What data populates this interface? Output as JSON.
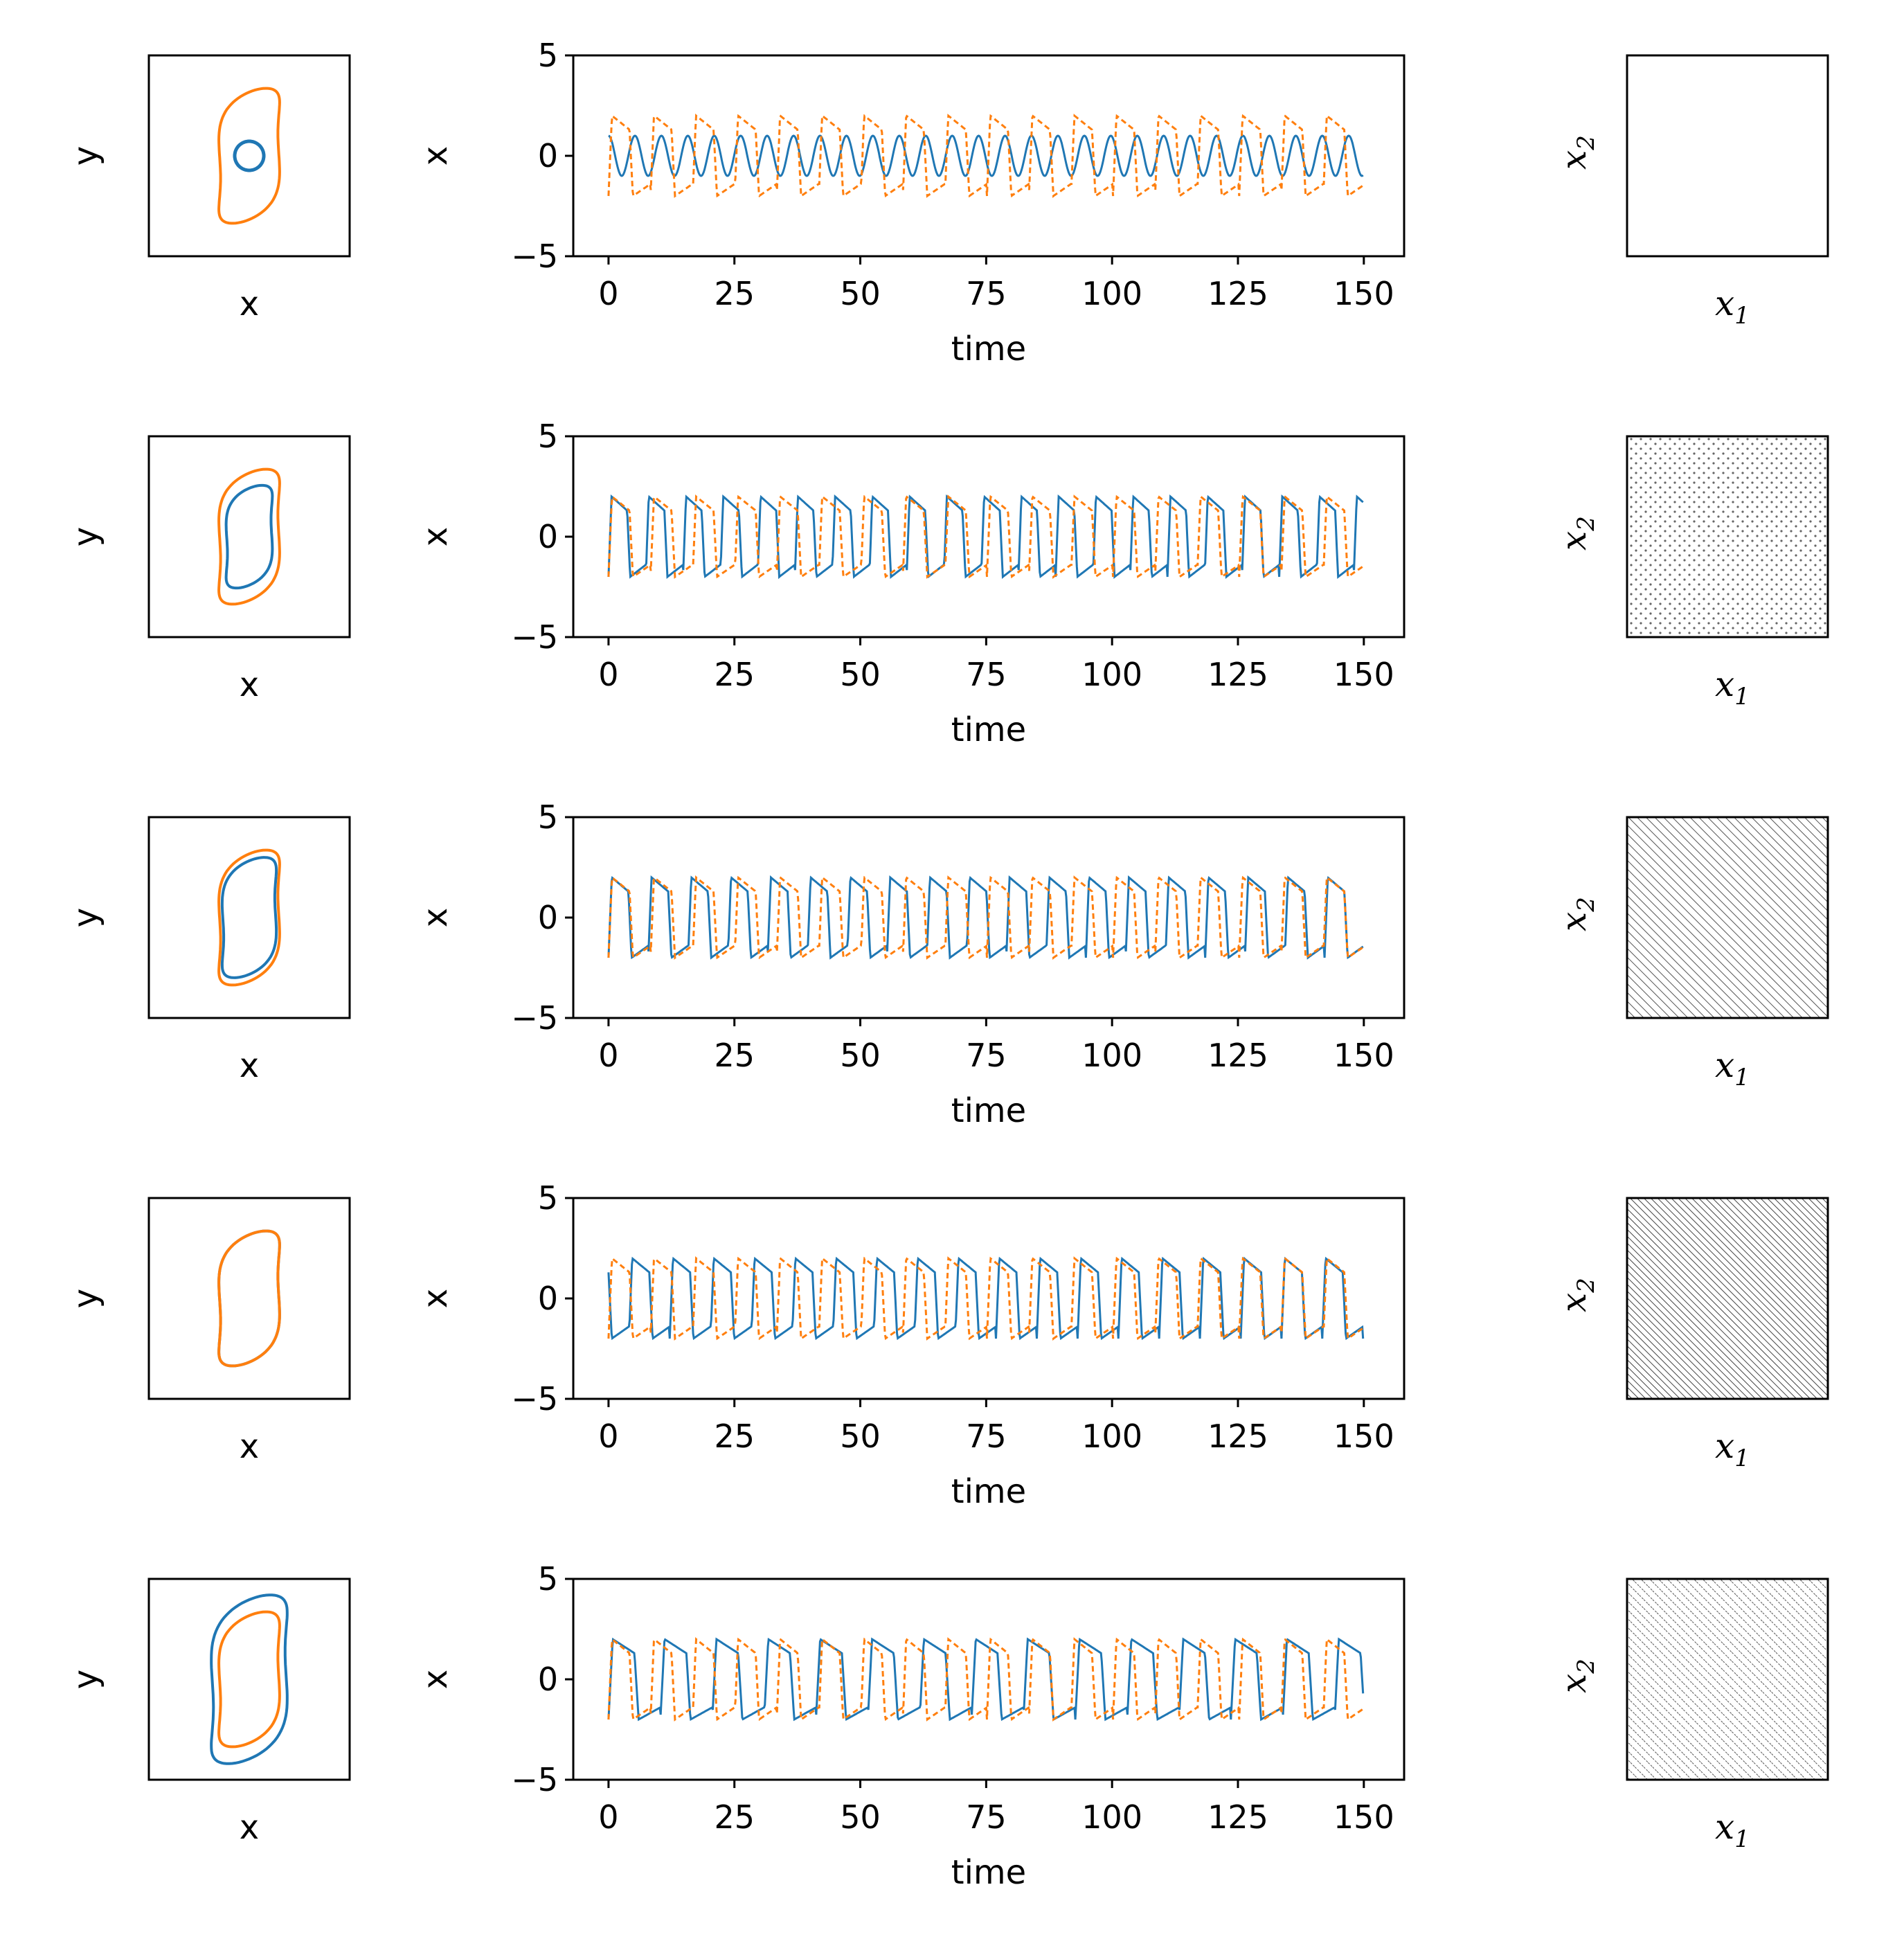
{
  "colors": {
    "series_blue": "#1f77b4",
    "series_orange": "#ff7f0e",
    "axes": "#000000",
    "hatch": "#555555"
  },
  "rows": [
    {
      "phase": {
        "xlabel": "x",
        "ylabel": "y"
      },
      "timeseries": {
        "xlabel": "time",
        "ylabel": "x",
        "yticks": [
          "5",
          "0",
          "−5"
        ],
        "xticks": [
          "0",
          "25",
          "50",
          "75",
          "100",
          "125",
          "150"
        ]
      },
      "param": {
        "xlabel_base": "x",
        "xlabel_sub": "1",
        "ylabel_base": "x",
        "ylabel_sub": "2",
        "pattern": "empty"
      }
    },
    {
      "phase": {
        "xlabel": "x",
        "ylabel": "y"
      },
      "timeseries": {
        "xlabel": "time",
        "ylabel": "x",
        "yticks": [
          "5",
          "0",
          "−5"
        ],
        "xticks": [
          "0",
          "25",
          "50",
          "75",
          "100",
          "125",
          "150"
        ]
      },
      "param": {
        "xlabel_base": "x",
        "xlabel_sub": "1",
        "ylabel_base": "x",
        "ylabel_sub": "2",
        "pattern": "dots"
      }
    },
    {
      "phase": {
        "xlabel": "x",
        "ylabel": "y"
      },
      "timeseries": {
        "xlabel": "time",
        "ylabel": "x",
        "yticks": [
          "5",
          "0",
          "−5"
        ],
        "xticks": [
          "0",
          "25",
          "50",
          "75",
          "100",
          "125",
          "150"
        ]
      },
      "param": {
        "xlabel_base": "x",
        "xlabel_sub": "1",
        "ylabel_base": "x",
        "ylabel_sub": "2",
        "pattern": "hatch-sparse"
      }
    },
    {
      "phase": {
        "xlabel": "x",
        "ylabel": "y"
      },
      "timeseries": {
        "xlabel": "time",
        "ylabel": "x",
        "yticks": [
          "5",
          "0",
          "−5"
        ],
        "xticks": [
          "0",
          "25",
          "50",
          "75",
          "100",
          "125",
          "150"
        ]
      },
      "param": {
        "xlabel_base": "x",
        "xlabel_sub": "1",
        "ylabel_base": "x",
        "ylabel_sub": "2",
        "pattern": "hatch-dense"
      }
    },
    {
      "phase": {
        "xlabel": "x",
        "ylabel": "y"
      },
      "timeseries": {
        "xlabel": "time",
        "ylabel": "x",
        "yticks": [
          "5",
          "0",
          "−5"
        ],
        "xticks": [
          "0",
          "25",
          "50",
          "75",
          "100",
          "125",
          "150"
        ]
      },
      "param": {
        "xlabel_base": "x",
        "xlabel_sub": "1",
        "ylabel_base": "x",
        "ylabel_sub": "2",
        "pattern": "hatch-dashed"
      }
    }
  ],
  "chart_data": [
    {
      "type": "line",
      "panel": "row1-timeseries",
      "xlim": [
        -7,
        158
      ],
      "ylim": [
        -5,
        5
      ],
      "grid": false,
      "series": [
        {
          "style": "solid",
          "color": "#1f77b4",
          "amplitude": 1.0,
          "period": 5.25,
          "phase": 0.0,
          "shape": "sine"
        },
        {
          "style": "dashed",
          "color": "#ff7f0e",
          "amplitude": 2.0,
          "period": 8.35,
          "phase": 0.0,
          "shape": "relaxation"
        }
      ]
    },
    {
      "type": "line",
      "panel": "row2-timeseries",
      "xlim": [
        -7,
        158
      ],
      "ylim": [
        -5,
        5
      ],
      "grid": false,
      "series": [
        {
          "style": "solid",
          "color": "#1f77b4",
          "amplitude": 2.0,
          "period": 7.4,
          "phase": 0.0,
          "shape": "relaxation"
        },
        {
          "style": "dashed",
          "color": "#ff7f0e",
          "amplitude": 2.0,
          "period": 8.35,
          "phase": 0.0,
          "shape": "relaxation"
        }
      ]
    },
    {
      "type": "line",
      "panel": "row3-timeseries",
      "xlim": [
        -7,
        158
      ],
      "ylim": [
        -5,
        5
      ],
      "grid": false,
      "series": [
        {
          "style": "solid",
          "color": "#1f77b4",
          "amplitude": 2.0,
          "period": 7.9,
          "phase": 0.0,
          "shape": "relaxation"
        },
        {
          "style": "dashed",
          "color": "#ff7f0e",
          "amplitude": 2.0,
          "period": 8.35,
          "phase": 0.0,
          "shape": "relaxation"
        }
      ]
    },
    {
      "type": "line",
      "panel": "row4-timeseries",
      "xlim": [
        -7,
        158
      ],
      "ylim": [
        -5,
        5
      ],
      "grid": false,
      "series": [
        {
          "style": "solid",
          "color": "#1f77b4",
          "amplitude": 2.0,
          "period": 8.1,
          "phase": 0.5,
          "shape": "relaxation"
        },
        {
          "style": "dashed",
          "color": "#ff7f0e",
          "amplitude": 2.0,
          "period": 8.35,
          "phase": 0.0,
          "shape": "relaxation"
        }
      ]
    },
    {
      "type": "line",
      "panel": "row5-timeseries",
      "xlim": [
        -7,
        158
      ],
      "ylim": [
        -5,
        5
      ],
      "grid": false,
      "series": [
        {
          "style": "solid",
          "color": "#1f77b4",
          "amplitude": 2.0,
          "period": 10.3,
          "phase": 0.0,
          "shape": "relaxation"
        },
        {
          "style": "dashed",
          "color": "#ff7f0e",
          "amplitude": 2.0,
          "period": 8.35,
          "phase": 0.0,
          "shape": "relaxation"
        }
      ]
    }
  ]
}
